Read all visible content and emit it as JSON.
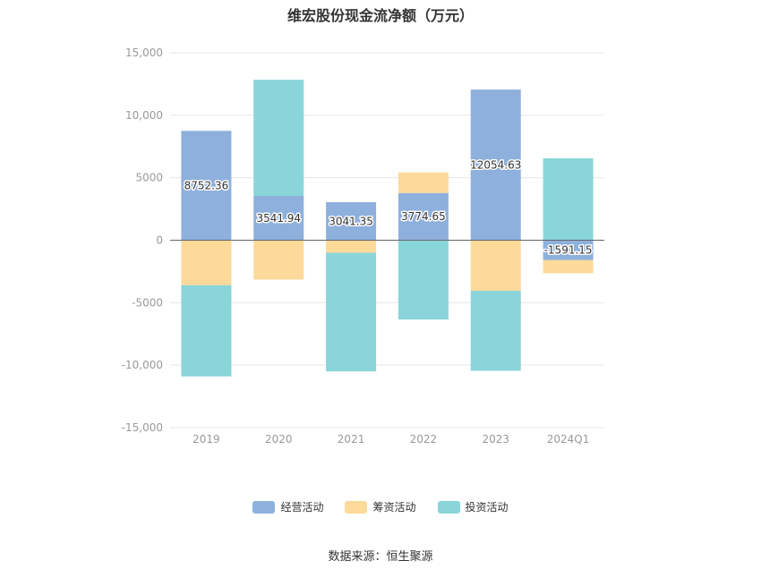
{
  "chart_data": {
    "type": "bar",
    "stacked": true,
    "title": "维宏股份现金流净额（万元）",
    "categories": [
      "2019",
      "2020",
      "2021",
      "2022",
      "2023",
      "2024Q1"
    ],
    "series": [
      {
        "name": "经营活动",
        "color": "#8eb0dc",
        "values": [
          8752.36,
          3541.94,
          3041.35,
          3774.65,
          12054.63,
          -1591.15
        ]
      },
      {
        "name": "筹资活动",
        "color": "#fdd99a",
        "values": [
          -3600,
          -3150,
          -1000,
          1650,
          -4050,
          -1050
        ]
      },
      {
        "name": "投资活动",
        "color": "#89d5d9",
        "values": [
          -7300,
          9300,
          -9500,
          -6350,
          -6400,
          6550
        ]
      }
    ],
    "data_labels_series": "经营活动",
    "data_labels": [
      "8752.36",
      "3541.94",
      "3041.35",
      "3774.65",
      "12054.63",
      "-1591.15"
    ],
    "ylim": [
      -15000,
      15000
    ],
    "yticks": [
      15000,
      10000,
      5000,
      0,
      -5000,
      -10000,
      -15000
    ],
    "ytick_labels": [
      "15,000",
      "10,000",
      "5000",
      "0",
      "-5000",
      "-10,000",
      "-15,000"
    ],
    "grid": true,
    "legend_position": "bottom-center",
    "source": "数据来源：恒生聚源"
  }
}
